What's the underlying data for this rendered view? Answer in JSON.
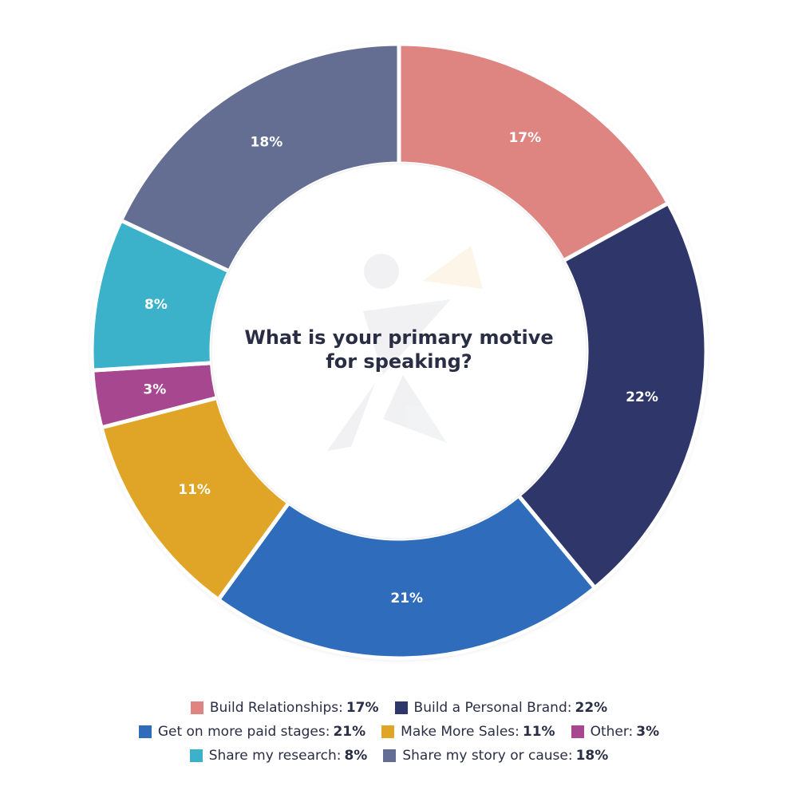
{
  "chart_data": {
    "type": "pie",
    "variant": "donut",
    "center_title": "What is your primary motive for speaking?",
    "slices": [
      {
        "label": "Build Relationships",
        "value": 17,
        "display": "17%",
        "color": "#de8481"
      },
      {
        "label": "Build a Personal Brand",
        "value": 22,
        "display": "22%",
        "color": "#2f376a"
      },
      {
        "label": "Get on more paid stages",
        "value": 21,
        "display": "21%",
        "color": "#2f6dbc"
      },
      {
        "label": "Make More Sales",
        "value": 11,
        "display": "11%",
        "color": "#e0a526"
      },
      {
        "label": "Other",
        "value": 3,
        "display": "3%",
        "color": "#a6478f"
      },
      {
        "label": "Share my research",
        "value": 8,
        "display": "8%",
        "color": "#3cb1ca"
      },
      {
        "label": "Share my story or cause",
        "value": 18,
        "display": "18%",
        "color": "#646d92"
      }
    ],
    "legend_rows": [
      [
        0,
        1
      ],
      [
        2,
        3,
        4
      ],
      [
        5,
        6
      ]
    ],
    "legend_placement": "bottom"
  }
}
